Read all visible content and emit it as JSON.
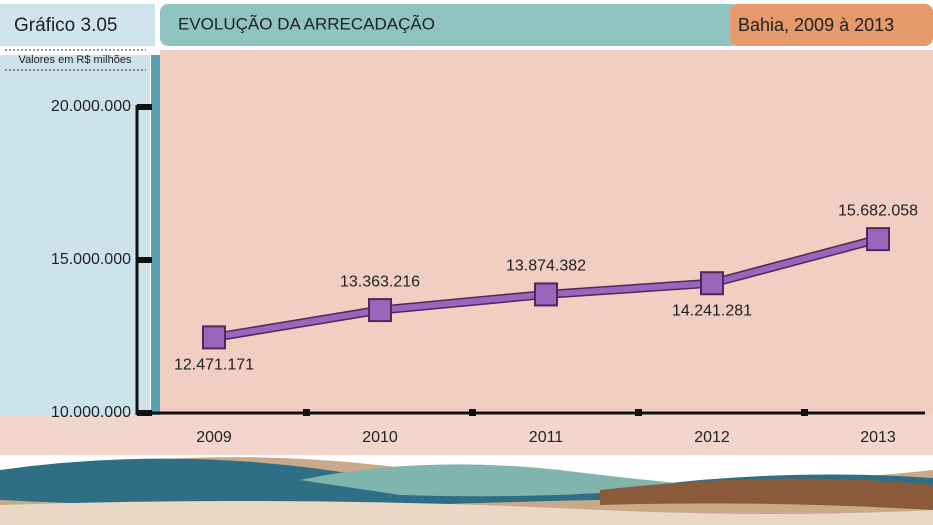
{
  "chart_data": {
    "type": "line",
    "header_label": "Gráfico 3.05",
    "title": "EVOLUÇÃO DA ARRECADAÇÃO",
    "subtitle": "Bahia, 2009 à 2013",
    "unit_label": "Valores em R$ milhões",
    "categories": [
      "2009",
      "2010",
      "2011",
      "2012",
      "2013"
    ],
    "values": [
      12471171,
      13363216,
      13874382,
      14241281,
      15682058
    ],
    "value_labels": [
      "12.471.171",
      "13.363.216",
      "13.874.382",
      "14.241.281",
      "15.682.058"
    ],
    "color": "#9966bb",
    "ylim": [
      10000000,
      20000000
    ],
    "yticks": [
      {
        "value": 10000000,
        "label": "10.000.000"
      },
      {
        "value": 15000000,
        "label": "15.000.000"
      },
      {
        "value": 20000000,
        "label": "20.000.000"
      }
    ]
  }
}
